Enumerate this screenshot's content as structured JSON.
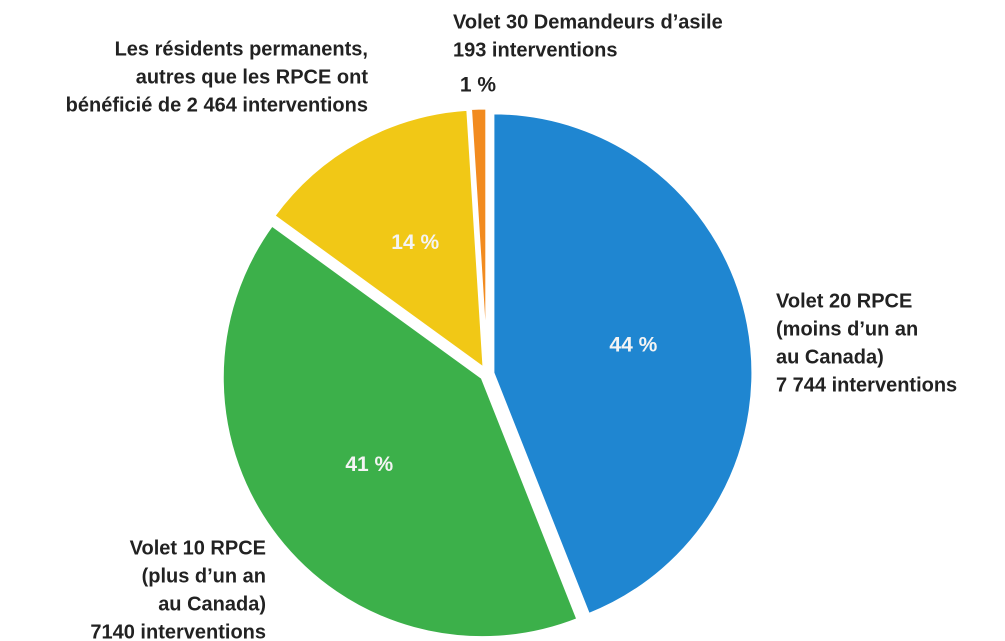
{
  "chart_data": {
    "type": "pie",
    "categories": [
      [
        "Volet 20 RPCE",
        "(moins d’un an",
        "au Canada)",
        "7 744 interventions"
      ],
      [
        "Volet 10 RPCE",
        "(plus d’un an",
        "au Canada)",
        "7140 interventions"
      ],
      [
        "Les résidents permanents,",
        "autres que les RPCE ont",
        "bénéficié de 2 464 interventions"
      ],
      [
        "Volet 30 Demandeurs d’asile",
        "193 interventions"
      ]
    ],
    "values": [
      44,
      41,
      14,
      1
    ],
    "value_labels": [
      "44 %",
      "41 %",
      "14 %",
      "1 %"
    ],
    "colors": [
      "#1f86d1",
      "#3cb04a",
      "#f1c816",
      "#f28b1f"
    ]
  }
}
